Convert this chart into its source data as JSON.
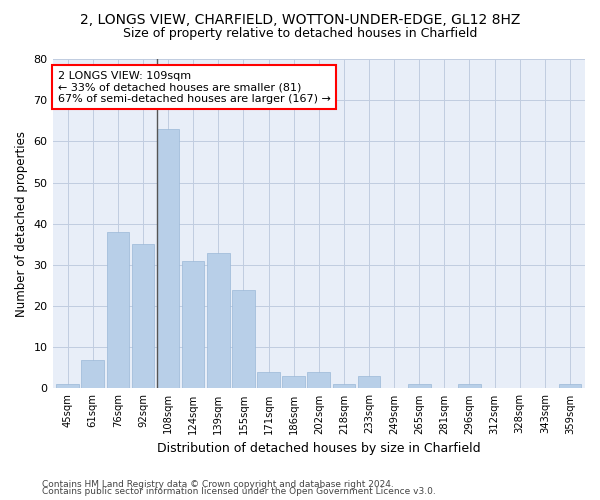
{
  "title1": "2, LONGS VIEW, CHARFIELD, WOTTON-UNDER-EDGE, GL12 8HZ",
  "title2": "Size of property relative to detached houses in Charfield",
  "xlabel": "Distribution of detached houses by size in Charfield",
  "ylabel": "Number of detached properties",
  "categories": [
    "45sqm",
    "61sqm",
    "76sqm",
    "92sqm",
    "108sqm",
    "124sqm",
    "139sqm",
    "155sqm",
    "171sqm",
    "186sqm",
    "202sqm",
    "218sqm",
    "233sqm",
    "249sqm",
    "265sqm",
    "281sqm",
    "296sqm",
    "312sqm",
    "328sqm",
    "343sqm",
    "359sqm"
  ],
  "values": [
    1,
    7,
    38,
    35,
    63,
    31,
    33,
    24,
    4,
    3,
    4,
    1,
    3,
    0,
    1,
    0,
    1,
    0,
    0,
    0,
    1
  ],
  "bar_color": "#b8cfe8",
  "bar_edge_color": "#9ab8d8",
  "reference_line_index": 4,
  "annotation_line1": "2 LONGS VIEW: 109sqm",
  "annotation_line2": "← 33% of detached houses are smaller (81)",
  "annotation_line3": "67% of semi-detached houses are larger (167) →",
  "ylim": [
    0,
    80
  ],
  "yticks": [
    0,
    10,
    20,
    30,
    40,
    50,
    60,
    70,
    80
  ],
  "footer1": "Contains HM Land Registry data © Crown copyright and database right 2024.",
  "footer2": "Contains public sector information licensed under the Open Government Licence v3.0.",
  "background_color": "#e8eef8",
  "grid_color": "#c0cce0"
}
